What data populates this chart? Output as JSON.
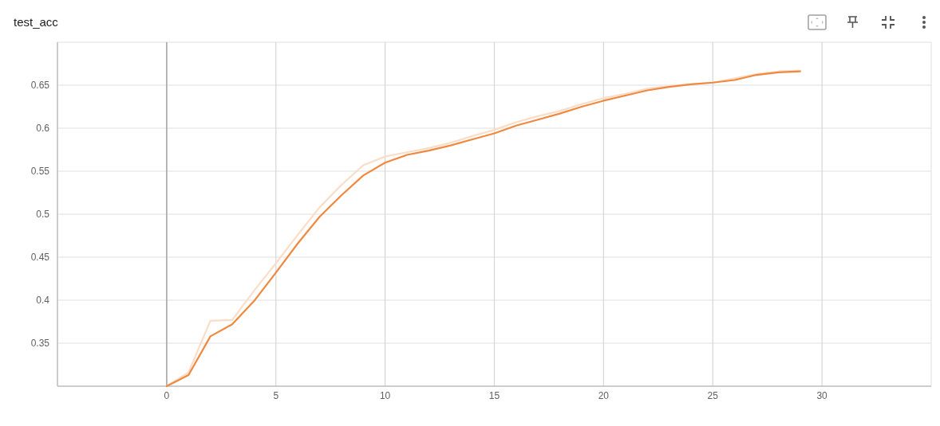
{
  "chart_data": {
    "type": "line",
    "title": "test_acc",
    "x": [
      0,
      1,
      2,
      3,
      4,
      5,
      6,
      7,
      8,
      9,
      10,
      11,
      12,
      13,
      14,
      15,
      16,
      17,
      18,
      19,
      20,
      21,
      22,
      23,
      24,
      25,
      26,
      27,
      28,
      29
    ],
    "series": [
      {
        "color": "#fbdcc7",
        "values": [
          0.3,
          0.316,
          0.376,
          0.377,
          0.411,
          0.443,
          0.476,
          0.508,
          0.534,
          0.557,
          0.567,
          0.572,
          0.577,
          0.583,
          0.591,
          0.598,
          0.607,
          0.614,
          0.62,
          0.628,
          0.635,
          0.64,
          0.646,
          0.649,
          0.651,
          0.653,
          0.658,
          0.663,
          0.666,
          0.667
        ]
      },
      {
        "color": "#f0883f",
        "values": [
          0.3,
          0.313,
          0.358,
          0.372,
          0.399,
          0.432,
          0.466,
          0.497,
          0.522,
          0.545,
          0.56,
          0.569,
          0.574,
          0.58,
          0.587,
          0.594,
          0.603,
          0.61,
          0.617,
          0.625,
          0.632,
          0.638,
          0.644,
          0.648,
          0.651,
          0.653,
          0.656,
          0.662,
          0.665,
          0.666
        ]
      }
    ],
    "xlim": [
      -5,
      35
    ],
    "ylim": [
      0.3,
      0.7
    ],
    "xticks": [
      0,
      5,
      10,
      15,
      20,
      25,
      30
    ],
    "yticks": [
      0.35,
      0.4,
      0.45,
      0.5,
      0.55,
      0.6,
      0.65
    ],
    "grid": true,
    "ref_lines": [
      {
        "axis": "x",
        "value": 0,
        "color": "#a6a6a6"
      }
    ]
  }
}
